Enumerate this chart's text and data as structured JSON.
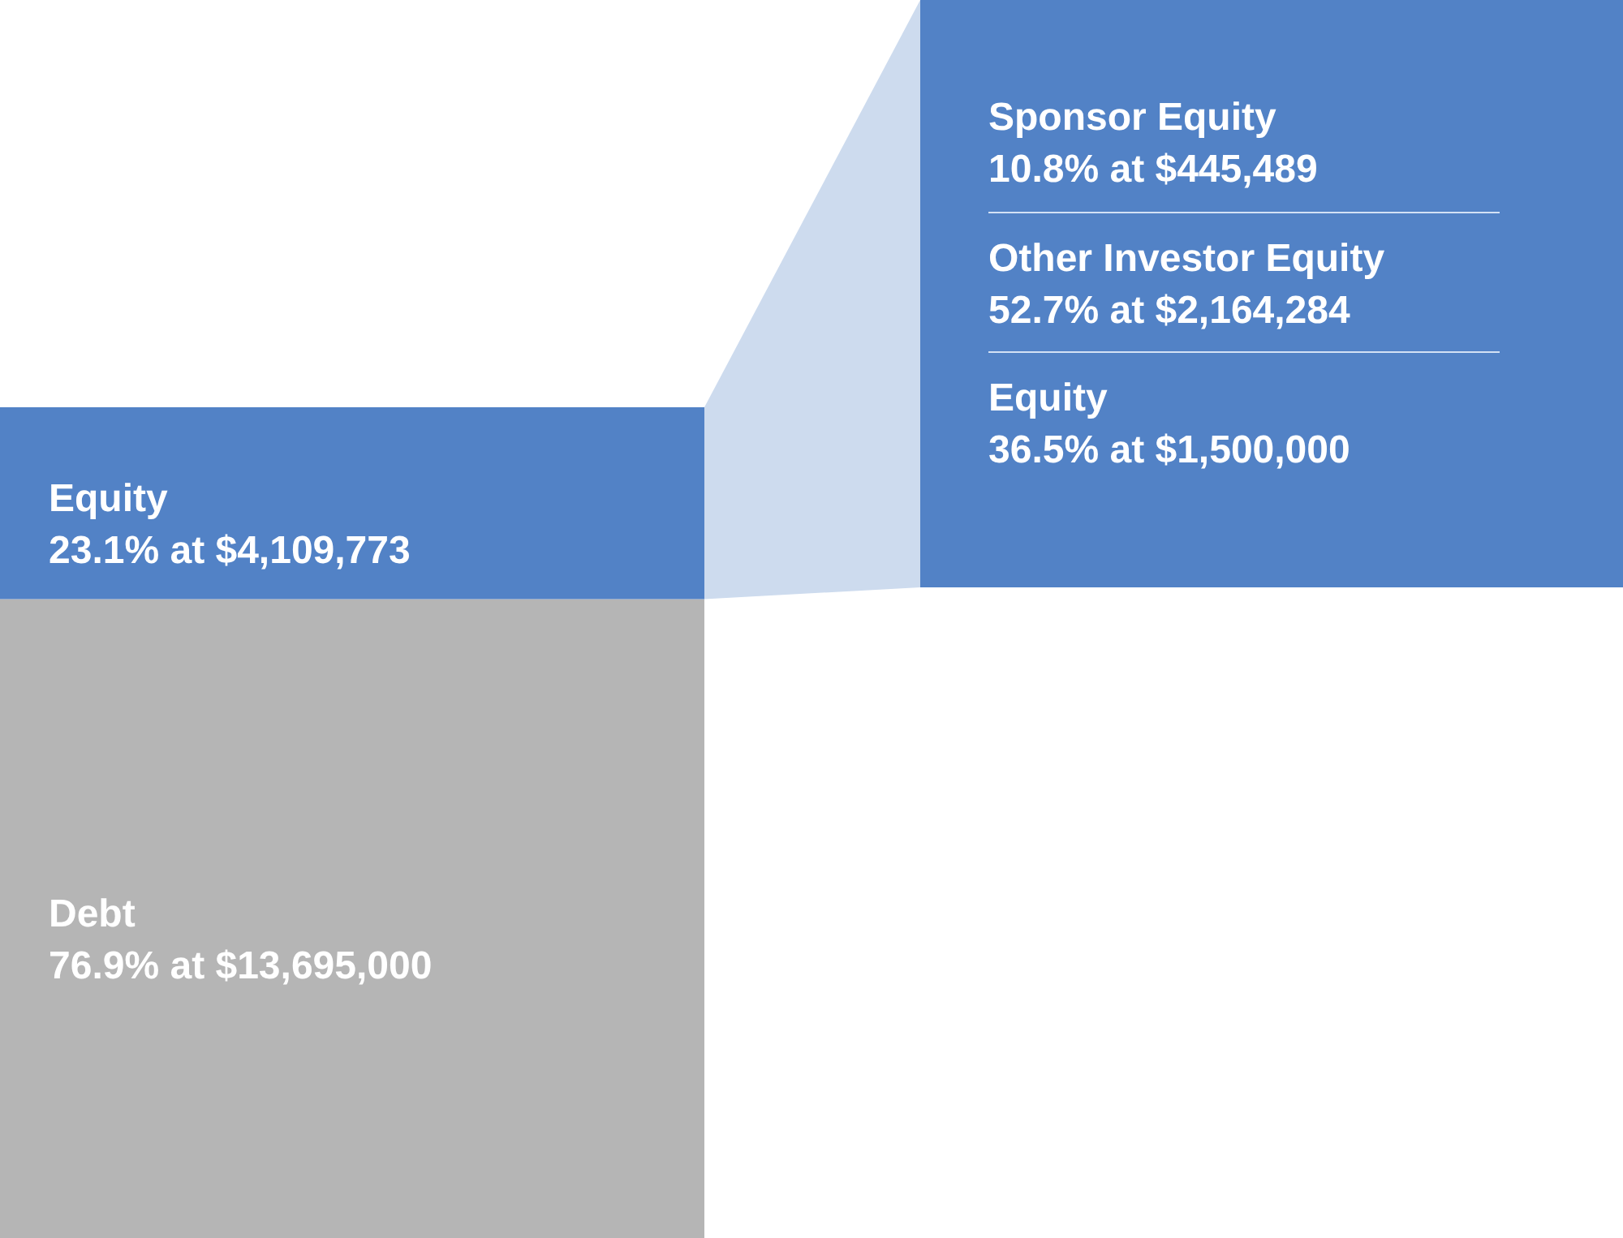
{
  "chart_data": [
    {
      "type": "bar",
      "stacked": true,
      "categories": [
        null
      ],
      "series": [
        {
          "name": "Debt",
          "color": "#b5b5b5",
          "values": [
            76.9
          ],
          "value_labels": [
            "76.9% at $13,695,000"
          ]
        },
        {
          "name": "Equity",
          "color": "#5282c6",
          "values": [
            23.1
          ],
          "value_labels": [
            "23.1% at $4,109,773"
          ]
        }
      ]
    },
    {
      "type": "other",
      "color": "#5282c6",
      "annotations": [
        "Sponsor Equity",
        "10.8% at $445,489",
        "Other Investor Equity",
        "52.7% at $2,164,284",
        "Equity",
        "36.5% at $1,500,000"
      ]
    }
  ]
}
